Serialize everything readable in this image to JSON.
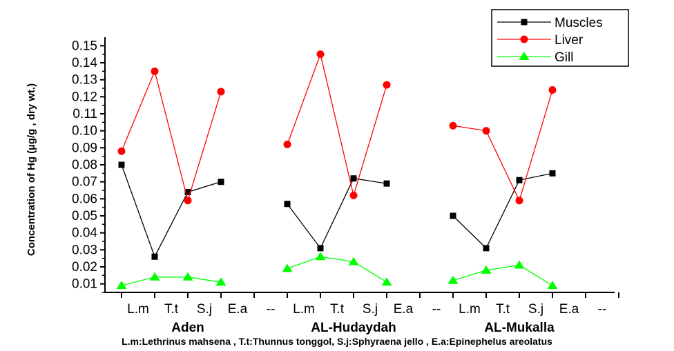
{
  "chart_data": {
    "type": "line",
    "xlabel": "",
    "ylabel": "Concentration of Hg (µg/g , dry wt.)",
    "ylim": [
      0.005,
      0.155
    ],
    "yticks": [
      "0.01",
      "0.02",
      "0.03",
      "0.04",
      "0.05",
      "0.06",
      "0.07",
      "0.08",
      "0.09",
      "0.10",
      "0.11",
      "0.12",
      "0.13",
      "0.14",
      "0.15"
    ],
    "categories": [
      "L.m",
      "T.t",
      "S.j",
      "E.a",
      "--",
      "L.m",
      "T.t",
      "S.j",
      "E.a",
      "--",
      "L.m",
      "T.t",
      "S.j",
      "E.a",
      "--"
    ],
    "groups": [
      {
        "label": "Aden",
        "start": 0,
        "end": 3
      },
      {
        "label": "AL-Hudaydah",
        "start": 5,
        "end": 8
      },
      {
        "label": "AL-Mukalla",
        "start": 10,
        "end": 13
      }
    ],
    "series": [
      {
        "name": "Muscles",
        "color": "#000000",
        "marker": "square",
        "values": [
          0.08,
          0.026,
          0.064,
          0.07,
          null,
          0.057,
          0.031,
          0.072,
          0.069,
          null,
          0.05,
          0.031,
          0.071,
          0.075,
          null
        ]
      },
      {
        "name": "Liver",
        "color": "#ff0000",
        "marker": "circle",
        "values": [
          0.088,
          0.135,
          0.059,
          0.123,
          null,
          0.092,
          0.145,
          0.062,
          0.127,
          null,
          0.103,
          0.1,
          0.059,
          0.124,
          null
        ]
      },
      {
        "name": "Gill",
        "color": "#00ff00",
        "marker": "triangle",
        "values": [
          0.009,
          0.014,
          0.014,
          0.011,
          null,
          0.019,
          0.026,
          0.023,
          0.011,
          null,
          0.012,
          0.018,
          0.021,
          0.009,
          null
        ]
      }
    ],
    "legend_position": "top-right",
    "footnote": "L.m:Lethrinus mahsena , T.t:Thunnus tonggol, S.j:Sphyraena jello , E.a:Epinephelus areolatus"
  }
}
